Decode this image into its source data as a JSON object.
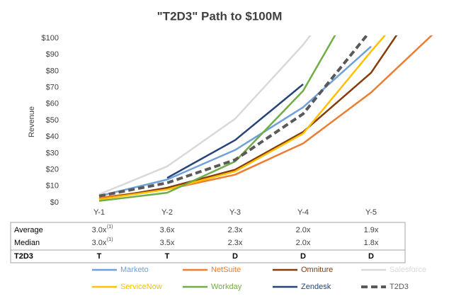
{
  "chart_data": {
    "type": "line",
    "title": "\"T2D3\" Path to $100M",
    "ylabel": "Revenue",
    "categories": [
      "Y-1",
      "Y-2",
      "Y-3",
      "Y-4",
      "Y-5",
      null
    ],
    "ylim": [
      0,
      100
    ],
    "yticks": [
      {
        "value": 0,
        "label": "$0"
      },
      {
        "value": 10,
        "label": "$10"
      },
      {
        "value": 20,
        "label": "$20"
      },
      {
        "value": 30,
        "label": "$30"
      },
      {
        "value": 40,
        "label": "$40"
      },
      {
        "value": 50,
        "label": "$50"
      },
      {
        "value": 60,
        "label": "$60"
      },
      {
        "value": 70,
        "label": "$70"
      },
      {
        "value": 80,
        "label": "$80"
      },
      {
        "value": 90,
        "label": "$90"
      },
      {
        "value": 100,
        "label": "$100"
      }
    ],
    "series": [
      {
        "name": "Marketo",
        "color": "#6fa0d8",
        "values": [
          4,
          14,
          32,
          58,
          95,
          null
        ]
      },
      {
        "name": "NetSuite",
        "color": "#ed7d31",
        "values": [
          3,
          8,
          17,
          36,
          67,
          106
        ]
      },
      {
        "name": "Omniture",
        "color": "#843c0c",
        "values": [
          2,
          9,
          20,
          43,
          79,
          140
        ]
      },
      {
        "name": "Salesforce",
        "color": "#d9d9d9",
        "values": [
          5,
          22,
          51,
          96,
          150,
          null
        ]
      },
      {
        "name": "ServiceNow",
        "color": "#ffc000",
        "values": [
          2,
          8,
          19,
          42,
          92,
          140
        ]
      },
      {
        "name": "Workday",
        "color": "#70ad47",
        "values": [
          1,
          6,
          25,
          68,
          140,
          null
        ]
      },
      {
        "name": "Zendesk",
        "color": "#264478",
        "values": [
          null,
          15,
          38,
          72,
          null,
          null
        ]
      },
      {
        "name": "T2D3",
        "color": "#595959",
        "dashed": true,
        "values": [
          4,
          12,
          26,
          54,
          105,
          null
        ]
      }
    ],
    "table": {
      "footnote": "(1)",
      "rows": [
        {
          "label": "Average",
          "cells": [
            "3.0x",
            "3.6x",
            "2.3x",
            "2.0x",
            "1.9x"
          ]
        },
        {
          "label": "Median",
          "cells": [
            "3.0x",
            "3.5x",
            "2.3x",
            "2.0x",
            "1.8x"
          ]
        },
        {
          "label": "T2D3",
          "cells": [
            "T",
            "T",
            "D",
            "D",
            "D"
          ]
        }
      ]
    }
  }
}
